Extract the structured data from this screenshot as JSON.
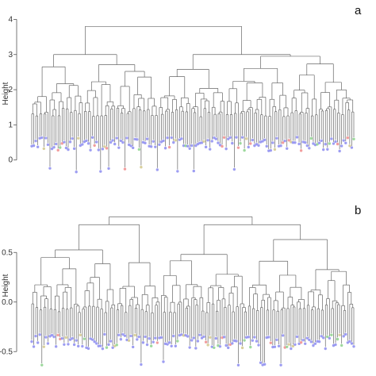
{
  "chart_data": [
    {
      "type": "dendrogram",
      "panel_label": "a",
      "ylabel": "Height",
      "ylim": [
        -0.3,
        4.1
      ],
      "yticks": [
        0,
        1,
        2,
        3,
        4
      ],
      "leaf_count": 160,
      "merges": [
        {
          "level": "root",
          "height": 3.8
        },
        {
          "level": "left-main",
          "height": 3.0
        },
        {
          "level": "right-main",
          "height": 3.3
        },
        {
          "level": "left-inner",
          "height": 2.2
        },
        {
          "level": "left-center",
          "height": 2.8
        },
        {
          "level": "right-inner-a",
          "height": 2.9
        },
        {
          "level": "right-inner-b",
          "height": 3.1
        }
      ],
      "min_leaf_height": -0.3,
      "typical_leaf_height": 0.5,
      "leaf_colors": [
        "#8c8cf0",
        "#f08c8c",
        "#8cd28c",
        "#d2c88c"
      ]
    },
    {
      "type": "dendrogram",
      "panel_label": "b",
      "ylabel": "Height",
      "ylim": [
        -0.65,
        0.95
      ],
      "yticks": [
        -0.5,
        0.0,
        0.5
      ],
      "leaf_count": 160,
      "merges": [
        {
          "level": "root",
          "height": 0.86
        },
        {
          "level": "left-main",
          "height": 0.78
        },
        {
          "level": "right-main",
          "height": 0.68
        },
        {
          "level": "left-inner",
          "height": 0.41
        },
        {
          "level": "left-center",
          "height": 0.36
        },
        {
          "level": "right-inner-a",
          "height": 0.54
        },
        {
          "level": "right-inner-b",
          "height": 0.46
        }
      ],
      "min_leaf_height": -0.62,
      "typical_leaf_height": -0.38,
      "leaf_colors": [
        "#8c8cf0",
        "#f08c8c",
        "#8cd28c",
        "#d2c88c"
      ]
    }
  ]
}
